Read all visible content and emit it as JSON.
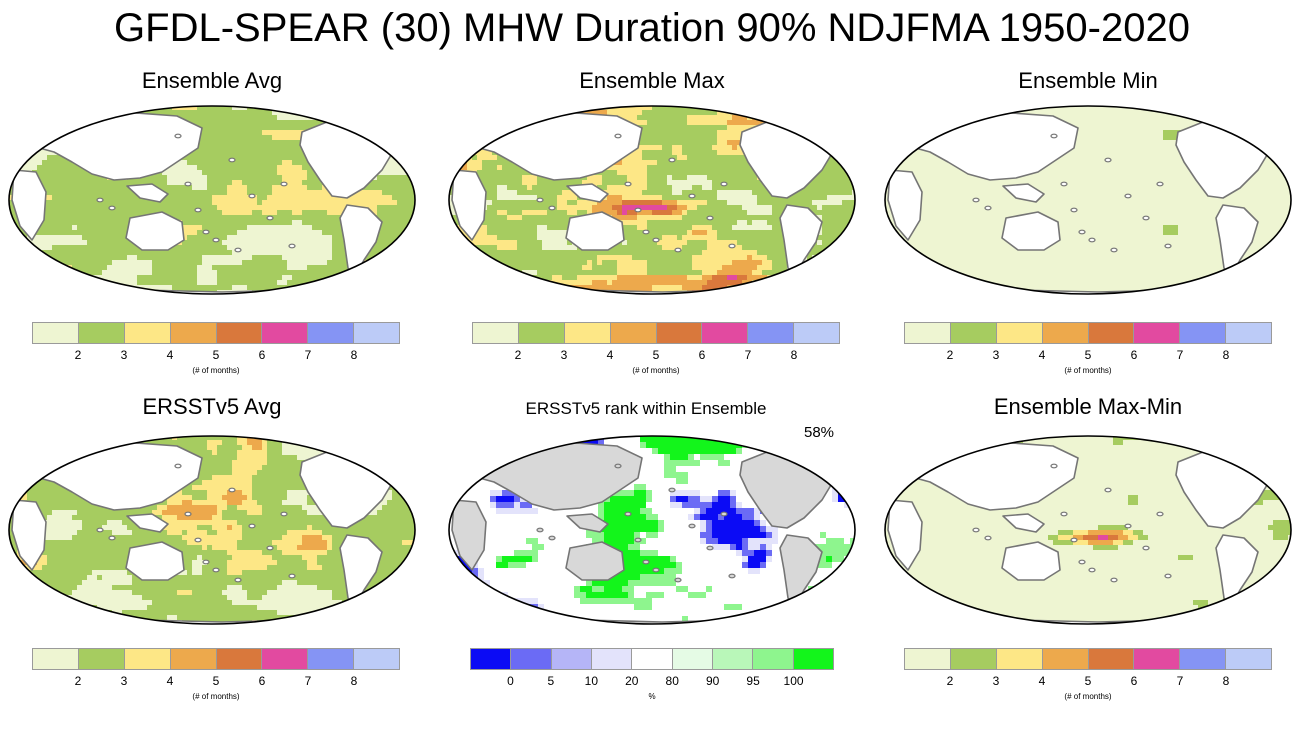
{
  "title": "GFDL-SPEAR (30) MHW Duration 90% NDJFMA 1950-2020",
  "colors": {
    "duration": [
      "#eef5d2",
      "#a6cc60",
      "#fde786",
      "#eda94c",
      "#d9783c",
      "#e24aa0",
      "#8594f4",
      "#bccbf7"
    ],
    "rank": [
      "#0b0bf5",
      "#6b6bf5",
      "#b5b5f7",
      "#e3e3fb",
      "#ffffff",
      "#e5fbe5",
      "#b9f7b9",
      "#8ef58e",
      "#13f51b"
    ],
    "land": "#ffffff",
    "land_gray": "#d8d8d8",
    "coast": "#757575"
  },
  "duration_colorbar": {
    "ticks": [
      "2",
      "3",
      "4",
      "5",
      "6",
      "7",
      "8"
    ],
    "unit": "(# of months)"
  },
  "rank_colorbar": {
    "ticks": [
      "0",
      "5",
      "10",
      "20",
      "80",
      "90",
      "95",
      "100"
    ],
    "unit": "%"
  },
  "panels": [
    {
      "title": "Ensemble Avg",
      "kind": "duration"
    },
    {
      "title": "Ensemble Max",
      "kind": "duration"
    },
    {
      "title": "Ensemble Min",
      "kind": "duration"
    },
    {
      "title": "ERSSTv5 Avg",
      "kind": "duration"
    },
    {
      "title": "ERSSTv5 rank within Ensemble",
      "kind": "rank",
      "percent": "58%"
    },
    {
      "title": "Ensemble Max-Min",
      "kind": "duration"
    }
  ]
}
